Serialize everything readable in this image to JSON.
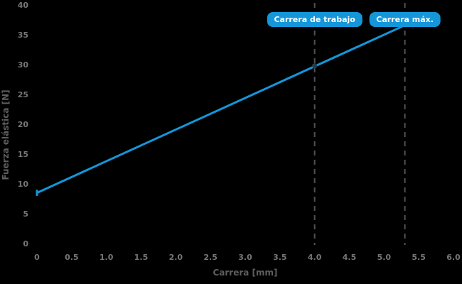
{
  "chart_data": {
    "type": "line",
    "title": "",
    "xlabel": "Carrera [mm]",
    "ylabel": "Fuerza elástica [N]",
    "xlim": [
      0,
      6.0
    ],
    "ylim": [
      0,
      40
    ],
    "xticks": [
      "0",
      "0.5",
      "1.0",
      "1.5",
      "2.0",
      "2.5",
      "3.0",
      "3.5",
      "4.0",
      "4.5",
      "5.0",
      "5.5",
      "6.0"
    ],
    "yticks": [
      "0",
      "5",
      "10",
      "15",
      "20",
      "25",
      "30",
      "35",
      "40"
    ],
    "grid": false,
    "legend": "none",
    "series": [
      {
        "name": "fuerza-elastica",
        "x": [
          0.0,
          5.3
        ],
        "y": [
          8.5,
          36.6
        ]
      }
    ],
    "start_marker": {
      "x": 0.0,
      "y": 8.5
    },
    "work_point": {
      "x": 4.0,
      "y": 29.8
    },
    "annotations": [
      {
        "id": "work-stroke",
        "label": "Carrera de trabajo",
        "x": 4.0
      },
      {
        "id": "max-stroke",
        "label": "Carrera máx.",
        "x": 5.3
      }
    ],
    "colors": {
      "background": "#000000",
      "line": "#1496d9",
      "badge_fill": "#1496d9",
      "badge_text": "#ffffff",
      "work_point": "#1e4050",
      "dashed_line": "#515151",
      "tick_text": "#767676",
      "axis_label_text": "#5f5f5f"
    }
  }
}
